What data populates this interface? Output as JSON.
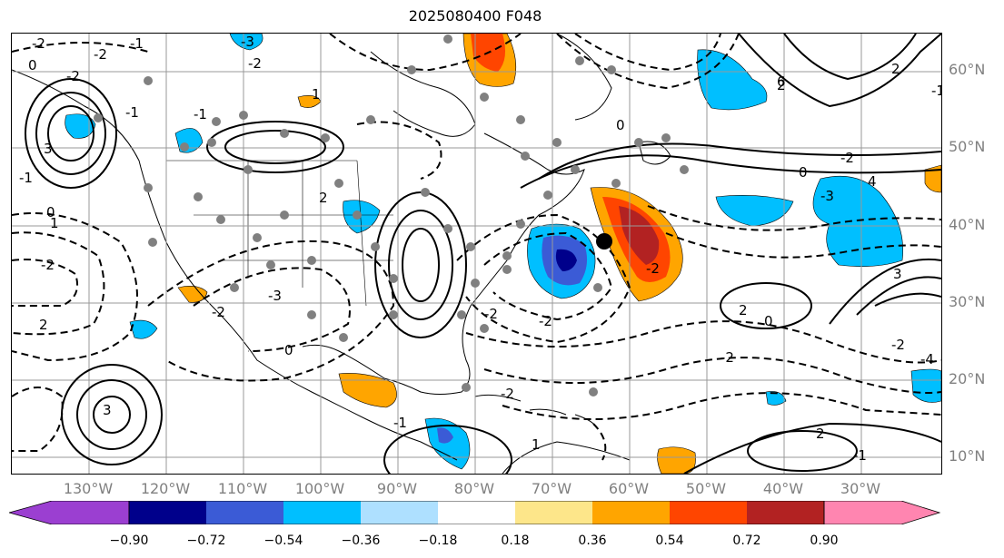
{
  "title": "2025080400 F048",
  "lat_labels": [
    "60°N",
    "50°N",
    "40°N",
    "30°N",
    "20°N",
    "10°N"
  ],
  "lon_labels": [
    "130°W",
    "120°W",
    "110°W",
    "100°W",
    "90°W",
    "80°W",
    "70°W",
    "60°W",
    "50°W",
    "40°W",
    "30°W"
  ],
  "colorbar": {
    "ticks": [
      "−0.90",
      "−0.72",
      "−0.54",
      "−0.36",
      "−0.18",
      "0.18",
      "0.36",
      "0.54",
      "0.72",
      "0.90"
    ],
    "colors": [
      "#9b3fd1",
      "#00008b",
      "#3b5bd6",
      "#00bfff",
      "#aee0ff",
      "#ffffff",
      "#fde68a",
      "#ffa500",
      "#ff4500",
      "#b22222",
      "#ff85b0"
    ]
  },
  "contour_labels": [
    "-2",
    "-2",
    "0",
    "3",
    "-1",
    "1",
    "-2",
    "2",
    "-2",
    "-1",
    "-1",
    "0",
    "-2",
    "-3",
    "1",
    "-1",
    "0",
    "-2",
    "2",
    "2",
    "6",
    "0",
    "-2",
    "-3",
    "4",
    "3",
    "-1",
    "-2",
    "-4",
    "3",
    "2",
    "-2",
    "0",
    "2",
    "-1",
    "-1",
    "-3",
    "0",
    "-2",
    "2",
    "-2",
    "-2",
    "-2",
    "1"
  ],
  "marked_point": "storm-center"
}
